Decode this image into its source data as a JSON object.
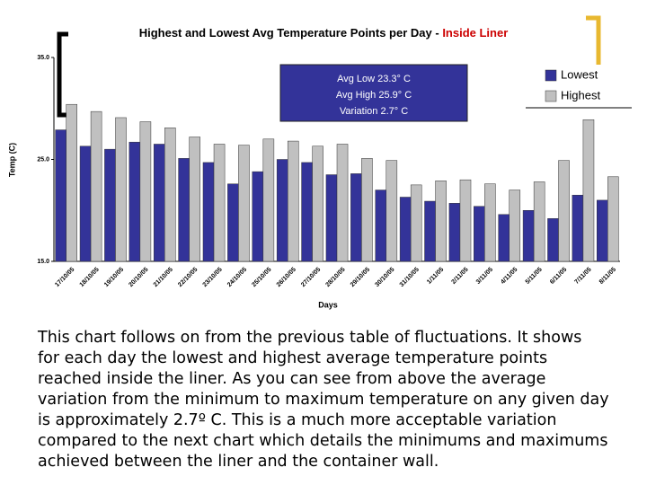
{
  "chart_data": {
    "type": "bar",
    "title": "Highest and Lowest Avg Temperature Points per Day -",
    "title_highlight": "Inside Liner",
    "y_label": "Temp (C)",
    "x_label": "Days",
    "categories": [
      "17/10/05",
      "18/10/05",
      "19/10/05",
      "20/10/05",
      "21/10/05",
      "22/10/05",
      "23/10/05",
      "24/10/05",
      "25/10/05",
      "26/10/05",
      "27/10/05",
      "28/10/05",
      "29/10/05",
      "30/10/05",
      "31/10/05",
      "1/11/05",
      "2/11/05",
      "3/11/05",
      "4/11/05",
      "5/11/05",
      "6/11/05",
      "7/11/05",
      "8/11/05"
    ],
    "series": [
      {
        "name": "Lowest",
        "color": "#333399",
        "values": [
          27.9,
          26.3,
          26.0,
          26.7,
          26.5,
          25.1,
          24.7,
          22.6,
          23.8,
          25.0,
          24.7,
          23.5,
          23.6,
          22.0,
          21.3,
          20.9,
          20.7,
          20.4,
          19.6,
          20.0,
          19.2,
          21.5,
          21.0
        ]
      },
      {
        "name": "Highest",
        "color": "#c0c0c0",
        "values": [
          30.4,
          29.7,
          29.1,
          28.7,
          28.1,
          27.2,
          26.5,
          26.4,
          27.0,
          26.8,
          26.3,
          26.5,
          25.1,
          24.9,
          22.5,
          22.9,
          23.0,
          22.6,
          22.0,
          22.8,
          24.9,
          28.9,
          23.3
        ]
      }
    ],
    "ylim": [
      15,
      35
    ],
    "yticks": [
      {
        "value": 15,
        "label": "15.0"
      },
      {
        "value": 25,
        "label": "25.0"
      },
      {
        "value": 35,
        "label": "35.0"
      }
    ],
    "info_box": [
      "Avg Low 23.3° C",
      "Avg High 25.9° C",
      "Variation 2.7° C"
    ],
    "legend": "top-right"
  },
  "paragraph": [
    "This chart follows on from the previous table of fluctuations. It shows",
    "for each day the lowest and highest average temperature points",
    "reached inside the liner. As you can see from above the average",
    "variation from the minimum to maximum temperature on any given day",
    "is approximately 2.7º C. This is a much more acceptable variation",
    "compared to the next chart which details the minimums and maximums",
    "achieved between the liner and the container wall."
  ]
}
